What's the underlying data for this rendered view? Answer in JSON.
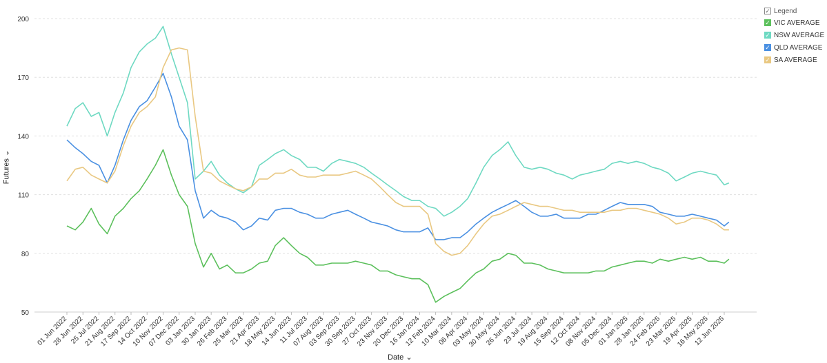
{
  "chart_data": {
    "type": "line",
    "xlabel": "Date",
    "ylabel": "Futures",
    "ylim": [
      50,
      200
    ],
    "yticks": [
      50,
      80,
      110,
      140,
      170,
      200
    ],
    "grid": true,
    "legend_position": "top-right",
    "legend_title": "Legend",
    "x_tick_labels": [
      "01 Jun 2022",
      "28 Jun 2022",
      "25 Jul 2022",
      "21 Aug 2022",
      "17 Sep 2022",
      "14 Oct 2022",
      "10 Nov 2022",
      "07 Dec 2022",
      "03 Jan 2023",
      "30 Jan 2023",
      "26 Feb 2023",
      "25 Mar 2023",
      "21 Apr 2023",
      "18 May 2023",
      "14 Jun 2023",
      "11 Jul 2023",
      "07 Aug 2023",
      "03 Sep 2023",
      "30 Sep 2023",
      "27 Oct 2023",
      "23 Nov 2023",
      "20 Dec 2023",
      "16 Jan 2024",
      "12 Feb 2024",
      "10 Mar 2024",
      "06 Apr 2024",
      "03 May 2024",
      "30 May 2024",
      "26 Jun 2024",
      "23 Jul 2024",
      "19 Aug 2024",
      "15 Sep 2024",
      "12 Oct 2024",
      "08 Nov 2024",
      "05 Dec 2024",
      "01 Jan 2025",
      "28 Jan 2025",
      "24 Feb 2025",
      "23 Mar 2025",
      "19 Apr 2025",
      "16 May 2025",
      "12 Jun 2025"
    ],
    "x": [
      "01 Jun 2022",
      "15 Jun 2022",
      "28 Jun 2022",
      "12 Jul 2022",
      "25 Jul 2022",
      "08 Aug 2022",
      "21 Aug 2022",
      "04 Sep 2022",
      "17 Sep 2022",
      "01 Oct 2022",
      "14 Oct 2022",
      "28 Oct 2022",
      "10 Nov 2022",
      "24 Nov 2022",
      "07 Dec 2022",
      "21 Dec 2022",
      "03 Jan 2023",
      "17 Jan 2023",
      "30 Jan 2023",
      "13 Feb 2023",
      "26 Feb 2023",
      "12 Mar 2023",
      "25 Mar 2023",
      "08 Apr 2023",
      "21 Apr 2023",
      "05 May 2023",
      "18 May 2023",
      "01 Jun 2023",
      "14 Jun 2023",
      "28 Jun 2023",
      "11 Jul 2023",
      "25 Jul 2023",
      "07 Aug 2023",
      "21 Aug 2023",
      "03 Sep 2023",
      "17 Sep 2023",
      "30 Sep 2023",
      "14 Oct 2023",
      "27 Oct 2023",
      "10 Nov 2023",
      "23 Nov 2023",
      "07 Dec 2023",
      "20 Dec 2023",
      "03 Jan 2024",
      "16 Jan 2024",
      "30 Jan 2024",
      "12 Feb 2024",
      "26 Feb 2024",
      "10 Mar 2024",
      "24 Mar 2024",
      "06 Apr 2024",
      "20 Apr 2024",
      "03 May 2024",
      "17 May 2024",
      "30 May 2024",
      "13 Jun 2024",
      "26 Jun 2024",
      "10 Jul 2024",
      "23 Jul 2024",
      "06 Aug 2024",
      "19 Aug 2024",
      "02 Sep 2024",
      "15 Sep 2024",
      "29 Sep 2024",
      "12 Oct 2024",
      "26 Oct 2024",
      "08 Nov 2024",
      "22 Nov 2024",
      "05 Dec 2024",
      "19 Dec 2024",
      "01 Jan 2025",
      "15 Jan 2025",
      "28 Jan 2025",
      "11 Feb 2025",
      "24 Feb 2025",
      "10 Mar 2025",
      "23 Mar 2025",
      "06 Apr 2025",
      "19 Apr 2025",
      "03 May 2025",
      "16 May 2025",
      "30 May 2025",
      "12 Jun 2025",
      "20 Jun 2025"
    ],
    "series": [
      {
        "name": "VIC AVERAGE",
        "color": "#5cc05c",
        "values": [
          94,
          92,
          96,
          103,
          95,
          90,
          99,
          103,
          108,
          112,
          118,
          125,
          133,
          120,
          110,
          104,
          85,
          73,
          80,
          72,
          74,
          70,
          70,
          72,
          75,
          76,
          84,
          88,
          84,
          80,
          78,
          74,
          74,
          75,
          75,
          75,
          76,
          75,
          74,
          71,
          71,
          69,
          68,
          67,
          67,
          64,
          55,
          58,
          60,
          62,
          66,
          70,
          72,
          76,
          77,
          80,
          79,
          75,
          75,
          74,
          72,
          71,
          70,
          70,
          70,
          70,
          71,
          71,
          73,
          74,
          75,
          76,
          76,
          75,
          77,
          76,
          77,
          78,
          77,
          78,
          76,
          76,
          75,
          77
        ]
      },
      {
        "name": "NSW AVERAGE",
        "color": "#6ed9c2",
        "values": [
          145,
          154,
          157,
          150,
          152,
          140,
          152,
          162,
          175,
          183,
          187,
          190,
          196,
          182,
          170,
          157,
          118,
          122,
          127,
          120,
          116,
          113,
          111,
          114,
          125,
          128,
          131,
          133,
          130,
          128,
          124,
          124,
          122,
          126,
          128,
          127,
          126,
          124,
          121,
          118,
          115,
          112,
          109,
          107,
          107,
          104,
          103,
          99,
          101,
          104,
          108,
          116,
          124,
          130,
          133,
          137,
          130,
          124,
          123,
          124,
          123,
          121,
          120,
          118,
          120,
          121,
          122,
          123,
          126,
          127,
          126,
          127,
          126,
          124,
          123,
          121,
          117,
          119,
          121,
          122,
          121,
          120,
          115,
          116
        ]
      },
      {
        "name": "QLD AVERAGE",
        "color": "#4a90e2",
        "values": [
          138,
          134,
          131,
          127,
          125,
          116,
          125,
          138,
          148,
          155,
          158,
          165,
          172,
          160,
          145,
          138,
          112,
          98,
          102,
          99,
          98,
          96,
          92,
          94,
          98,
          97,
          102,
          103,
          103,
          101,
          100,
          98,
          98,
          100,
          101,
          102,
          100,
          98,
          96,
          95,
          94,
          92,
          91,
          91,
          91,
          93,
          87,
          87,
          88,
          88,
          91,
          95,
          98,
          101,
          103,
          105,
          107,
          104,
          101,
          99,
          99,
          100,
          98,
          98,
          98,
          100,
          100,
          102,
          104,
          106,
          105,
          105,
          105,
          104,
          101,
          100,
          99,
          99,
          100,
          99,
          98,
          97,
          94,
          96
        ]
      },
      {
        "name": "SA AVERAGE",
        "color": "#e9c882",
        "values": [
          117,
          123,
          124,
          120,
          118,
          116,
          122,
          135,
          145,
          152,
          155,
          160,
          175,
          184,
          185,
          184,
          150,
          122,
          121,
          117,
          115,
          113,
          112,
          114,
          118,
          118,
          121,
          121,
          123,
          120,
          119,
          119,
          120,
          120,
          120,
          121,
          122,
          120,
          118,
          114,
          110,
          106,
          104,
          104,
          104,
          100,
          85,
          81,
          79,
          80,
          84,
          90,
          95,
          99,
          100,
          102,
          104,
          106,
          105,
          104,
          104,
          103,
          102,
          102,
          101,
          101,
          101,
          101,
          102,
          102,
          103,
          103,
          102,
          101,
          100,
          98,
          95,
          96,
          98,
          98,
          97,
          95,
          92,
          92
        ]
      }
    ]
  }
}
